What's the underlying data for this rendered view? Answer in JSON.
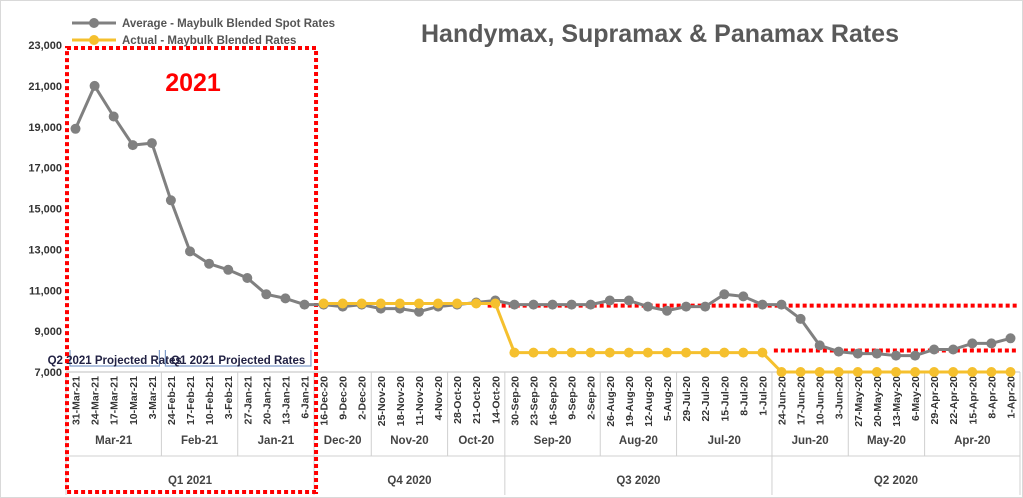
{
  "chart_data": {
    "type": "line",
    "title": "Handymax, Supramax & Panamax Rates",
    "ylim": [
      7000,
      23000
    ],
    "yticks": [
      "7,000",
      "9,000",
      "11,000",
      "13,000",
      "15,000",
      "17,000",
      "19,000",
      "21,000",
      "23,000"
    ],
    "grid": false,
    "legend_position": "top-left",
    "categories": [
      "31-Mar-21",
      "24-Mar-21",
      "17-Mar-21",
      "10-Mar-21",
      "3-Mar-21",
      "24-Feb-21",
      "17-Feb-21",
      "10-Feb-21",
      "3-Feb-21",
      "27-Jan-21",
      "20-Jan-21",
      "13-Jan-21",
      "6-Jan-21",
      "16-Dec-20",
      "9-Dec-20",
      "2-Dec-20",
      "25-Nov-20",
      "18-Nov-20",
      "11-Nov-20",
      "4-Nov-20",
      "28-Oct-20",
      "21-Oct-20",
      "14-Oct-20",
      "30-Sep-20",
      "23-Sep-20",
      "16-Sep-20",
      "9-Sep-20",
      "2-Sep-20",
      "26-Aug-20",
      "19-Aug-20",
      "12-Aug-20",
      "5-Aug-20",
      "29-Jul-20",
      "22-Jul-20",
      "15-Jul-20",
      "8-Jul-20",
      "1-Jul-20",
      "24-Jun-20",
      "17-Jun-20",
      "10-Jun-20",
      "3-Jun-20",
      "27-May-20",
      "20-May-20",
      "13-May-20",
      "6-May-20",
      "29-Apr-20",
      "22-Apr-20",
      "15-Apr-20",
      "8-Apr-20",
      "1-Apr-20"
    ],
    "series": [
      {
        "name": "Average - Maybulk Blended Spot Rates",
        "color": "#808080",
        "values": [
          18900,
          21000,
          19500,
          18100,
          18200,
          15400,
          12900,
          12300,
          12000,
          11600,
          10800,
          10600,
          10300,
          10300,
          10200,
          10300,
          10100,
          10100,
          9950,
          10200,
          10300,
          10400,
          10500,
          10300,
          10300,
          10300,
          10300,
          10300,
          10500,
          10500,
          10200,
          10000,
          10200,
          10200,
          10800,
          10700,
          10300,
          10300,
          9600,
          8300,
          8000,
          7900,
          7900,
          7800,
          7800,
          8100,
          8100,
          8400,
          8400,
          8650
        ]
      },
      {
        "name": "Actual - Maybulk Blended Rates",
        "color": "#f5c02e",
        "values": [
          null,
          null,
          null,
          null,
          null,
          null,
          null,
          null,
          null,
          null,
          null,
          null,
          null,
          10350,
          10350,
          10350,
          10350,
          10350,
          10350,
          10350,
          10350,
          10350,
          10350,
          7950,
          7950,
          7950,
          7950,
          7950,
          7950,
          7950,
          7950,
          7950,
          7950,
          7950,
          7950,
          7950,
          7950,
          7000,
          7000,
          7000,
          7000,
          7000,
          7000,
          7000,
          7000,
          7000,
          7000,
          7000,
          7000,
          7000
        ]
      }
    ],
    "month_groups": [
      {
        "label": "Mar-21",
        "start": 0,
        "end": 4
      },
      {
        "label": "Feb-21",
        "start": 5,
        "end": 8
      },
      {
        "label": "Jan-21",
        "start": 9,
        "end": 12
      },
      {
        "label": "Dec-20",
        "start": 13,
        "end": 15
      },
      {
        "label": "Nov-20",
        "start": 16,
        "end": 19
      },
      {
        "label": "Oct-20",
        "start": 20,
        "end": 22
      },
      {
        "label": "Sep-20",
        "start": 23,
        "end": 27
      },
      {
        "label": "Aug-20",
        "start": 28,
        "end": 31
      },
      {
        "label": "Jul-20",
        "start": 32,
        "end": 36
      },
      {
        "label": "Jun-20",
        "start": 37,
        "end": 40
      },
      {
        "label": "May-20",
        "start": 41,
        "end": 44
      },
      {
        "label": "Apr-20",
        "start": 45,
        "end": 49
      }
    ],
    "quarter_groups": [
      {
        "label": "Q1 2021",
        "start": 0,
        "end": 12
      },
      {
        "label": "Q4 2020",
        "start": 13,
        "end": 22
      },
      {
        "label": "Q3 2020",
        "start": 23,
        "end": 36
      },
      {
        "label": "Q2 2020",
        "start": 37,
        "end": 49
      }
    ],
    "annotations": {
      "year_label": "2021",
      "projection_labels": [
        {
          "label": "Q2 2021 Projected Rates",
          "start": 0,
          "end": 5
        },
        {
          "label": "Q1 2021 Projected Rates",
          "start": 5,
          "end": 12
        }
      ],
      "reference_lines": [
        {
          "value": 10250,
          "from_index": 22,
          "color": "#ff0000"
        },
        {
          "value": 8050,
          "from_index": 37,
          "color": "#ff0000"
        }
      ],
      "highlight_box": {
        "from_index": 0,
        "to_index": 12,
        "color": "#ff0000"
      }
    }
  }
}
